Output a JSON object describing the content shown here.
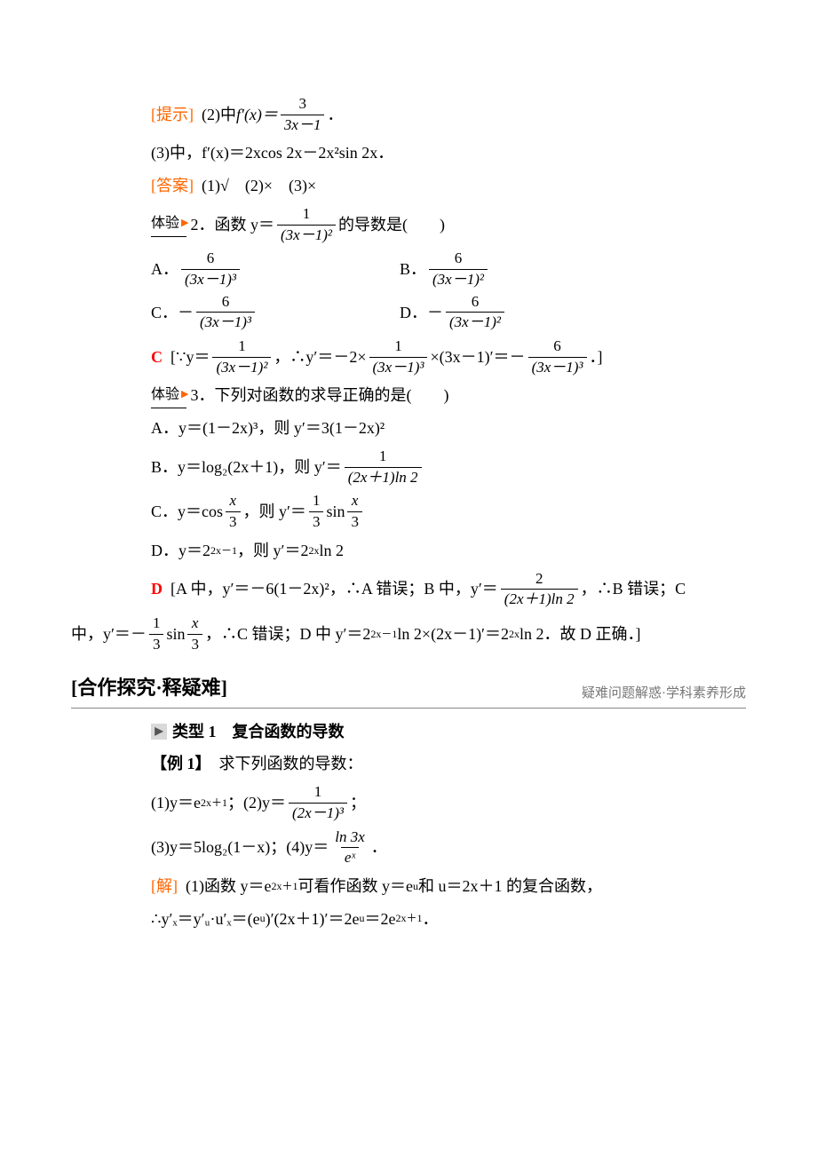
{
  "colors": {
    "orange": "#ff6600",
    "red": "#ff0000",
    "text": "#000000",
    "bg": "#ffffff",
    "gray": "#777777"
  },
  "typography": {
    "body_fontsize": 18,
    "frac_fontsize": 17,
    "section_title_fontsize": 22
  },
  "hint": {
    "label": "[提示]",
    "p1_prefix": "(2)中",
    "p1_fx": "f′(x)＝",
    "p1_frac_num": "3",
    "p1_frac_den": "3x－1",
    "p1_suffix": "．",
    "p2": "(3)中，f′(x)＝2xcos 2x－2x²sin 2x．"
  },
  "answer": {
    "label": "[答案]",
    "text": "(1)√　(2)×　(3)×"
  },
  "q2": {
    "badge": "体验",
    "num": "2．",
    "stem_prefix": "函数 y＝",
    "stem_frac_num": "1",
    "stem_frac_den": "(3x－1)²",
    "stem_suffix": "的导数是(　　)",
    "A_label": "A．",
    "A_num": "6",
    "A_den": "(3x－1)³",
    "B_label": "B．",
    "B_num": "6",
    "B_den": "(3x－1)²",
    "C_label": "C．－",
    "C_num": "6",
    "C_den": "(3x－1)³",
    "D_label": "D．－",
    "D_num": "6",
    "D_den": "(3x－1)²",
    "sol_letter": "C",
    "sol_open": "[∵y＝",
    "sol_f1_num": "1",
    "sol_f1_den": "(3x－1)²",
    "sol_mid1": "，∴y′＝－2×",
    "sol_f2_num": "1",
    "sol_f2_den": "(3x－1)³",
    "sol_mid2": "×(3x－1)′＝－",
    "sol_f3_num": "6",
    "sol_f3_den": "(3x－1)³",
    "sol_close": "．]"
  },
  "q3": {
    "badge": "体验",
    "num": "3．",
    "stem": "下列对函数的求导正确的是(　　)",
    "A": "A．y＝(1－2x)³，则 y′＝3(1－2x)²",
    "B_prefix": "B．y＝log₂(2x＋1)，则 y′＝",
    "B_num": "1",
    "B_den": "(2x＋1)ln 2",
    "C_prefix": "C．y＝cos ",
    "C_f1_num": "x",
    "C_f1_den": "3",
    "C_mid": "，则 y′＝",
    "C_f2_num": "1",
    "C_f2_den": "3",
    "C_mid2": "sin ",
    "C_f3_num": "x",
    "C_f3_den": "3",
    "D_prefix": "D．y＝2",
    "D_exp1": "2x－1",
    "D_mid": "，则 y′＝2",
    "D_exp2": "2x",
    "D_suffix": "ln 2",
    "sol_letter": "D",
    "sol_p1_a": "[A 中，y′＝－6(1－2x)²，∴A 错误；B 中，y′＝",
    "sol_p1_f_num": "2",
    "sol_p1_f_den": "(2x＋1)ln 2",
    "sol_p1_b": "，∴B 错误；C",
    "sol_p2_a": "中，y′＝－",
    "sol_p2_f1_num": "1",
    "sol_p2_f1_den": "3",
    "sol_p2_b": "sin ",
    "sol_p2_f2_num": "x",
    "sol_p2_f2_den": "3",
    "sol_p2_c": "，∴C 错误；D 中 y′＝2",
    "sol_p2_exp1": "2x－1",
    "sol_p2_d": "ln 2×(2x－1)′＝2",
    "sol_p2_exp2": "2x",
    "sol_p2_e": "ln 2．故 D 正确．]"
  },
  "section": {
    "title": "[合作探究·释疑难]",
    "sub": "疑难问题解惑·学科素养形成"
  },
  "type1": {
    "label": "类型 1　复合函数的导数"
  },
  "ex1": {
    "label": "【例 1】",
    "stem": "求下列函数的导数：",
    "p1_a": "(1)y＝e",
    "p1_exp": "2x＋1",
    "p1_b": "；(2)y＝",
    "p1_f_num": "1",
    "p1_f_den": "(2x－1)³",
    "p1_c": "；",
    "p2_a": "(3)y＝5log₂(1－x)；(4)y＝",
    "p2_f_num": "ln 3x",
    "p2_f_den": "eˣ",
    "p2_b": "．",
    "sol_label": "[解]",
    "sol1_a": "(1)函数 y＝e",
    "sol1_exp1": "2x＋1",
    "sol1_b": " 可看作函数 y＝e",
    "sol1_exp2": "u",
    "sol1_c": " 和 u＝2x＋1 的复合函数，",
    "sol2_a": "∴y′ₓ＝y′ᵤ·u′ₓ＝(e",
    "sol2_exp1": "u",
    "sol2_b": ")′(2x＋1)′＝2e",
    "sol2_exp2": "u",
    "sol2_c": "＝2e",
    "sol2_exp3": "2x＋1",
    "sol2_d": "．"
  }
}
